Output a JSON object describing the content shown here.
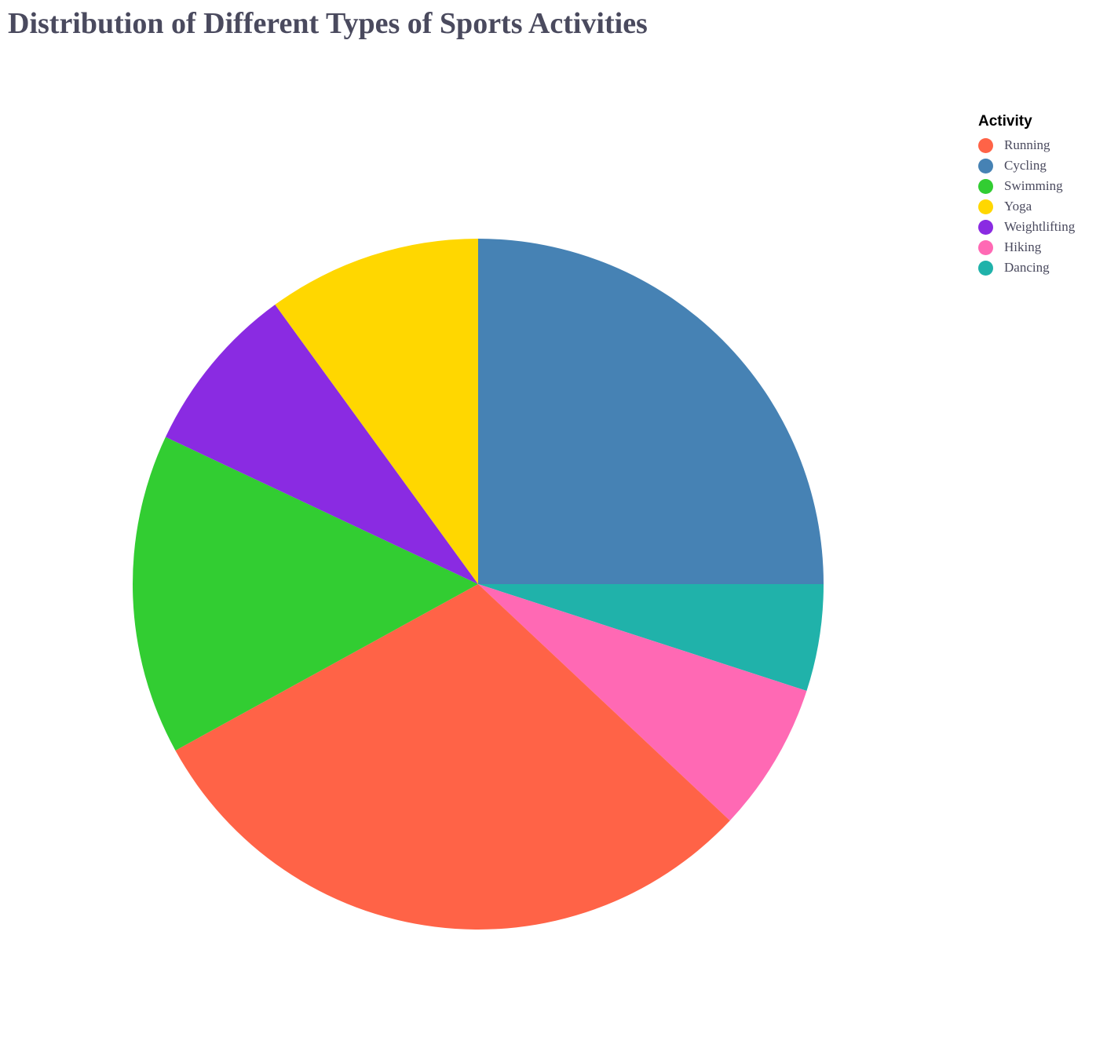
{
  "chart_data": {
    "type": "pie",
    "title": "Distribution of Different Types of Sports Activities",
    "legend_title": "Activity",
    "legend_position": "top-right",
    "slices": [
      {
        "label": "Running",
        "value": 30,
        "color": "#FF6347"
      },
      {
        "label": "Cycling",
        "value": 25,
        "color": "#4682B4"
      },
      {
        "label": "Swimming",
        "value": 15,
        "color": "#32CD32"
      },
      {
        "label": "Yoga",
        "value": 10,
        "color": "#FFD700"
      },
      {
        "label": "Weightlifting",
        "value": 8,
        "color": "#8A2BE2"
      },
      {
        "label": "Hiking",
        "value": 7,
        "color": "#FF69B4"
      },
      {
        "label": "Dancing",
        "value": 5,
        "color": "#20B2AA"
      }
    ]
  }
}
